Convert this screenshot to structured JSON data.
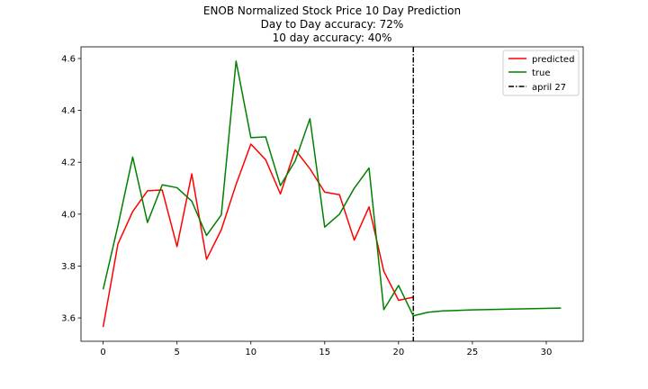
{
  "chart_data": {
    "type": "line",
    "title": "ENOB Normalized Stock Price 10 Day Prediction",
    "subtitle_lines": [
      "Day to Day accuracy: 72%",
      "10 day accuracy: 40%"
    ],
    "xlabel": "",
    "ylabel": "",
    "xlim": [
      -1.5,
      32.5
    ],
    "ylim": [
      3.51,
      4.645
    ],
    "xticks": [
      0,
      5,
      10,
      15,
      20,
      25,
      30
    ],
    "yticks": [
      3.6,
      3.8,
      4.0,
      4.2,
      4.4,
      4.6
    ],
    "ytick_labels": [
      "3.6",
      "3.8",
      "4.0",
      "4.2",
      "4.4",
      "4.6"
    ],
    "grid": false,
    "legend_position": "top-right",
    "series": [
      {
        "name": "predicted",
        "color": "#ff0000",
        "x": [
          0,
          1,
          2,
          3,
          4,
          5,
          6,
          7,
          8,
          9,
          10,
          11,
          12,
          13,
          14,
          15,
          16,
          17,
          18,
          19,
          20,
          21
        ],
        "y": [
          3.565,
          3.885,
          4.01,
          4.09,
          4.093,
          3.875,
          4.155,
          3.826,
          3.94,
          4.115,
          4.27,
          4.21,
          4.078,
          4.248,
          4.175,
          4.085,
          4.075,
          3.9,
          4.028,
          3.78,
          3.668,
          3.68
        ]
      },
      {
        "name": "true",
        "color": "#008000",
        "x": [
          0,
          1,
          2,
          3,
          4,
          5,
          6,
          7,
          8,
          9,
          10,
          11,
          12,
          13,
          14,
          15,
          16,
          17,
          18,
          19,
          20,
          21,
          22,
          23,
          25,
          31
        ],
        "y": [
          3.71,
          3.955,
          4.22,
          3.968,
          4.113,
          4.102,
          4.05,
          3.918,
          3.997,
          4.59,
          4.295,
          4.298,
          4.11,
          4.205,
          4.368,
          3.95,
          4.0,
          4.1,
          4.178,
          3.632,
          3.725,
          3.608,
          3.622,
          3.627,
          3.631,
          3.638
        ]
      }
    ],
    "vline": {
      "name": "april 27",
      "x": 21,
      "color": "#000000",
      "style": "dash-dot"
    }
  }
}
